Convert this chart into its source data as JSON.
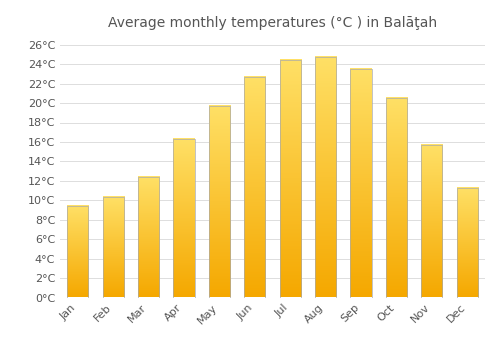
{
  "title": "Average monthly temperatures (°C ) in Balāţah",
  "months": [
    "Jan",
    "Feb",
    "Mar",
    "Apr",
    "May",
    "Jun",
    "Jul",
    "Aug",
    "Sep",
    "Oct",
    "Nov",
    "Dec"
  ],
  "values": [
    9.4,
    10.3,
    12.4,
    16.3,
    19.7,
    22.7,
    24.4,
    24.7,
    23.5,
    20.5,
    15.7,
    11.3
  ],
  "bar_color_bottom": "#F5A800",
  "bar_color_top": "#FFE066",
  "bar_edge_color": "#AAAAAA",
  "background_color": "#FFFFFF",
  "grid_color": "#DDDDDD",
  "text_color": "#555555",
  "ylim": [
    0,
    27
  ],
  "yticks": [
    0,
    2,
    4,
    6,
    8,
    10,
    12,
    14,
    16,
    18,
    20,
    22,
    24,
    26
  ],
  "ytick_labels": [
    "0°C",
    "2°C",
    "4°C",
    "6°C",
    "8°C",
    "10°C",
    "12°C",
    "14°C",
    "16°C",
    "18°C",
    "20°C",
    "22°C",
    "24°C",
    "26°C"
  ],
  "title_fontsize": 10,
  "tick_fontsize": 8,
  "bar_width": 0.6
}
